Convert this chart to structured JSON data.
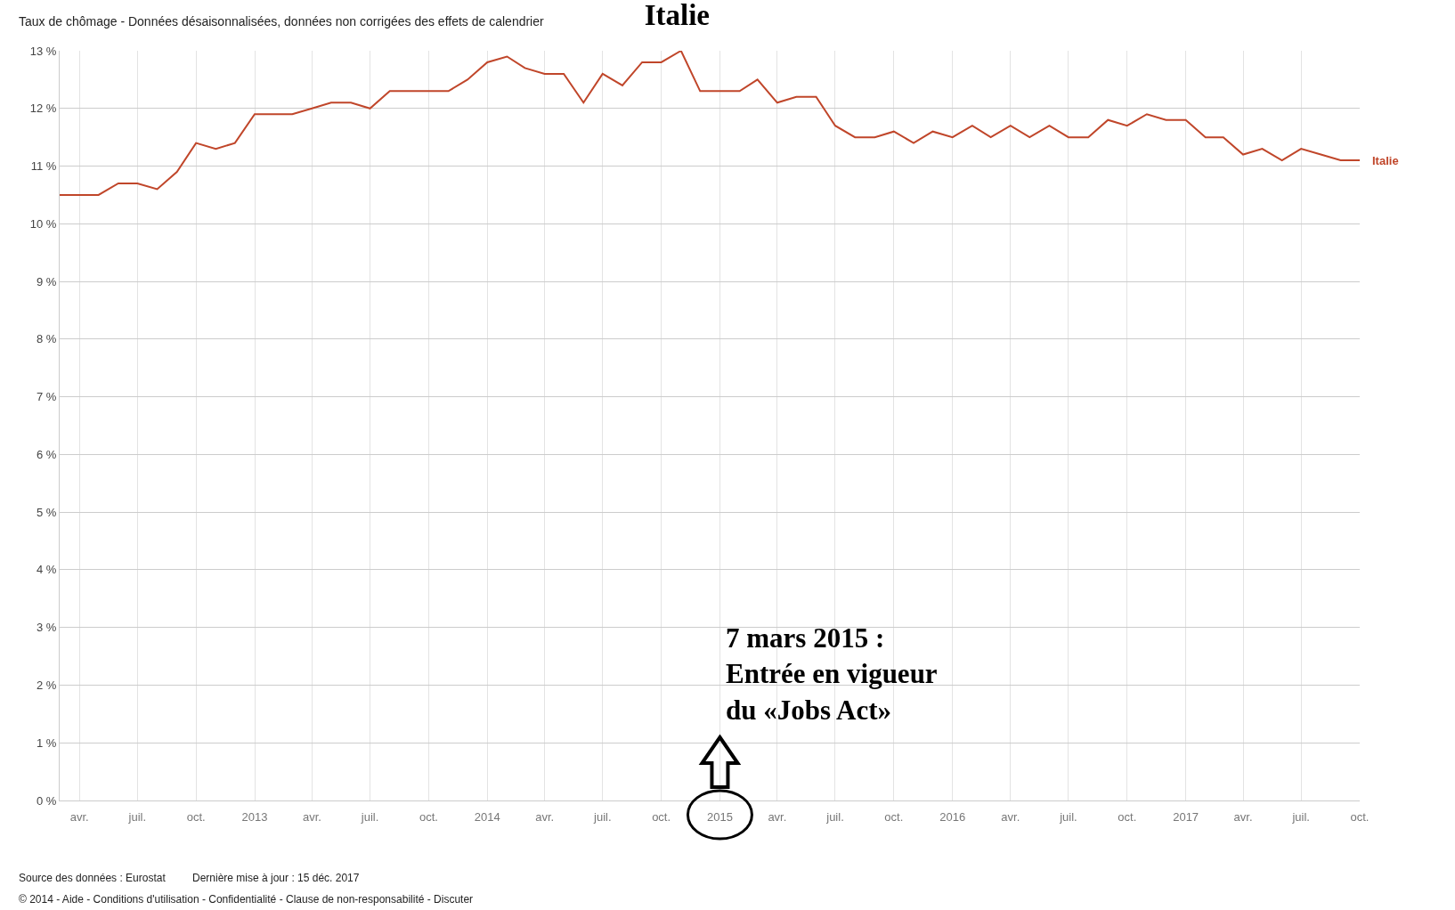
{
  "chart_data": {
    "type": "line",
    "title": "Italie",
    "subtitle": "Taux de chômage - Données désaisonnalisées, données non corrigées des effets de calendrier",
    "annotations": [
      "7 mars 2015 :\nEntrée en vigueur\ndu «Jobs Act»",
      "Source des données : Eurostat",
      "Dernière mise à jour : 15 déc. 2017",
      "© 2014 - Aide - Conditions d'utilisation - Confidentialité - Clause de non-responsabilité - Discuter"
    ],
    "x": [
      "2012-03",
      "2012-04",
      "2012-05",
      "2012-06",
      "2012-07",
      "2012-08",
      "2012-09",
      "2012-10",
      "2012-11",
      "2012-12",
      "2013-01",
      "2013-02",
      "2013-03",
      "2013-04",
      "2013-05",
      "2013-06",
      "2013-07",
      "2013-08",
      "2013-09",
      "2013-10",
      "2013-11",
      "2013-12",
      "2014-01",
      "2014-02",
      "2014-03",
      "2014-04",
      "2014-05",
      "2014-06",
      "2014-07",
      "2014-08",
      "2014-09",
      "2014-10",
      "2014-11",
      "2014-12",
      "2015-01",
      "2015-02",
      "2015-03",
      "2015-04",
      "2015-05",
      "2015-06",
      "2015-07",
      "2015-08",
      "2015-09",
      "2015-10",
      "2015-11",
      "2015-12",
      "2016-01",
      "2016-02",
      "2016-03",
      "2016-04",
      "2016-05",
      "2016-06",
      "2016-07",
      "2016-08",
      "2016-09",
      "2016-10",
      "2016-11",
      "2016-12",
      "2017-01",
      "2017-02",
      "2017-03",
      "2017-04",
      "2017-05",
      "2017-06",
      "2017-07",
      "2017-08",
      "2017-09",
      "2017-10"
    ],
    "series": [
      {
        "name": "Italie",
        "color": "#c0462a",
        "values": [
          10.5,
          10.5,
          10.5,
          10.7,
          10.7,
          10.6,
          10.9,
          11.4,
          11.3,
          11.4,
          11.9,
          11.9,
          11.9,
          12.0,
          12.1,
          12.1,
          12.0,
          12.3,
          12.3,
          12.3,
          12.3,
          12.5,
          12.8,
          12.9,
          12.7,
          12.6,
          12.6,
          12.1,
          12.6,
          12.4,
          12.8,
          12.8,
          13.0,
          12.3,
          12.3,
          12.3,
          12.5,
          12.1,
          12.2,
          12.2,
          11.7,
          11.5,
          11.5,
          11.6,
          11.4,
          11.6,
          11.5,
          11.7,
          11.5,
          11.7,
          11.5,
          11.7,
          11.5,
          11.5,
          11.8,
          11.7,
          11.9,
          11.8,
          11.8,
          11.5,
          11.5,
          11.2,
          11.3,
          11.1,
          11.3,
          11.2,
          11.1,
          11.1
        ]
      }
    ],
    "xlim": [
      "2012-03",
      "2017-10"
    ],
    "xticks": [
      {
        "value": "2012-04",
        "label": "avr."
      },
      {
        "value": "2012-07",
        "label": "juil."
      },
      {
        "value": "2012-10",
        "label": "oct."
      },
      {
        "value": "2013-01",
        "label": "2013"
      },
      {
        "value": "2013-04",
        "label": "avr."
      },
      {
        "value": "2013-07",
        "label": "juil."
      },
      {
        "value": "2013-10",
        "label": "oct."
      },
      {
        "value": "2014-01",
        "label": "2014"
      },
      {
        "value": "2014-04",
        "label": "avr."
      },
      {
        "value": "2014-07",
        "label": "juil."
      },
      {
        "value": "2014-10",
        "label": "oct."
      },
      {
        "value": "2015-01",
        "label": "2015"
      },
      {
        "value": "2015-04",
        "label": "avr."
      },
      {
        "value": "2015-07",
        "label": "juil."
      },
      {
        "value": "2015-10",
        "label": "oct."
      },
      {
        "value": "2016-01",
        "label": "2016"
      },
      {
        "value": "2016-04",
        "label": "avr."
      },
      {
        "value": "2016-07",
        "label": "juil."
      },
      {
        "value": "2016-10",
        "label": "oct."
      },
      {
        "value": "2017-01",
        "label": "2017"
      },
      {
        "value": "2017-04",
        "label": "avr."
      },
      {
        "value": "2017-07",
        "label": "juil."
      },
      {
        "value": "2017-10",
        "label": "oct."
      }
    ],
    "ylim": [
      0,
      13
    ],
    "yticks": [
      {
        "value": 0,
        "label": "0 %"
      },
      {
        "value": 1,
        "label": "1 %"
      },
      {
        "value": 2,
        "label": "2 %"
      },
      {
        "value": 3,
        "label": "3 %"
      },
      {
        "value": 4,
        "label": "4 %"
      },
      {
        "value": 5,
        "label": "5 %"
      },
      {
        "value": 6,
        "label": "6 %"
      },
      {
        "value": 7,
        "label": "7 %"
      },
      {
        "value": 8,
        "label": "8 %"
      },
      {
        "value": 9,
        "label": "9 %"
      },
      {
        "value": 10,
        "label": "10 %"
      },
      {
        "value": 11,
        "label": "11 %"
      },
      {
        "value": 12,
        "label": "12 %"
      },
      {
        "value": 13,
        "label": "13 %"
      }
    ],
    "grid": true,
    "legend": false,
    "marker": "none",
    "line_style": "solid"
  }
}
